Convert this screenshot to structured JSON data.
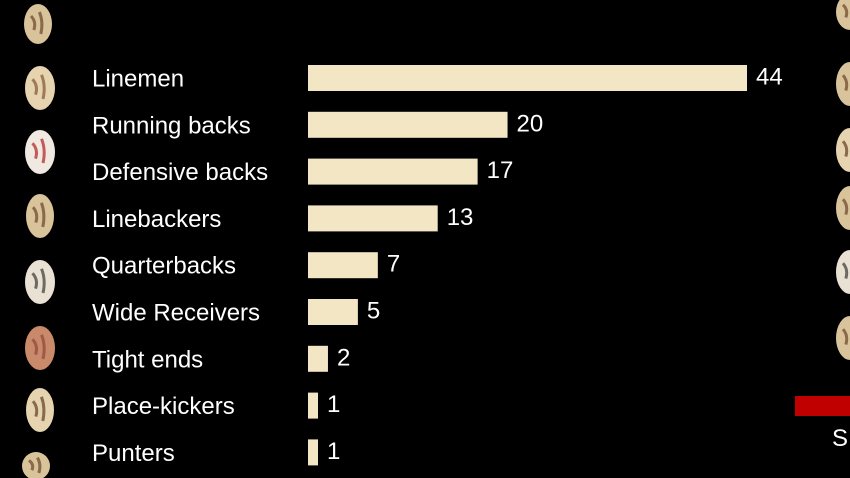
{
  "chart_data": {
    "type": "bar",
    "orientation": "horizontal",
    "categories": [
      "Linemen",
      "Running backs",
      "Defensive backs",
      "Linebackers",
      "Quarterbacks",
      "Wide Receivers",
      "Tight ends",
      "Place-kickers",
      "Punters"
    ],
    "values": [
      44,
      20,
      17,
      13,
      7,
      5,
      2,
      1,
      1
    ],
    "value_labels": [
      "44",
      "20",
      "17",
      "13",
      "7",
      "5",
      "2",
      "1",
      "1"
    ],
    "xlim": [
      0,
      44
    ],
    "grid": false,
    "legend": "none"
  },
  "edge_text": "S",
  "colors": {
    "background": "#000000",
    "bar": "#f2e6c4",
    "text": "#ffffff",
    "badge": "#c00000"
  },
  "decor": {
    "left_column_icon": "brain-slice-icon",
    "right_column_icon": "brain-slice-icon"
  }
}
